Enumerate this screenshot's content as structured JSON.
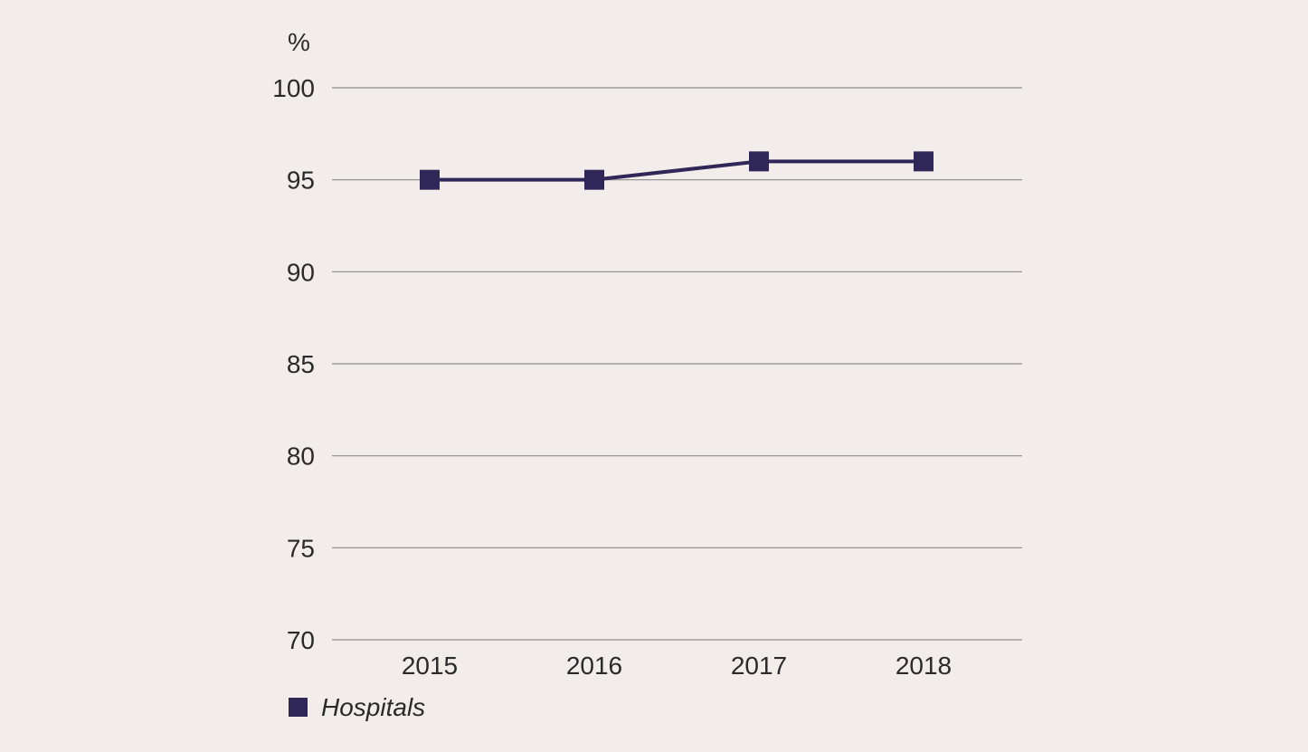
{
  "chart_data": {
    "type": "line",
    "title": "",
    "xlabel": "",
    "ylabel": "%",
    "categories": [
      "2015",
      "2016",
      "2017",
      "2018"
    ],
    "series": [
      {
        "name": "Hospitals",
        "values": [
          95,
          95,
          96,
          96
        ],
        "color": "#2e2757",
        "marker": "square"
      }
    ],
    "ylim": [
      70,
      100
    ],
    "yticks": [
      70,
      75,
      80,
      85,
      90,
      95,
      100
    ],
    "grid": true,
    "legend": "bottom-left"
  },
  "colors": {
    "background": "#f2edeb",
    "gridline": "#8c8c8c",
    "series": "#2e2757",
    "text": "#2a2a2a"
  }
}
